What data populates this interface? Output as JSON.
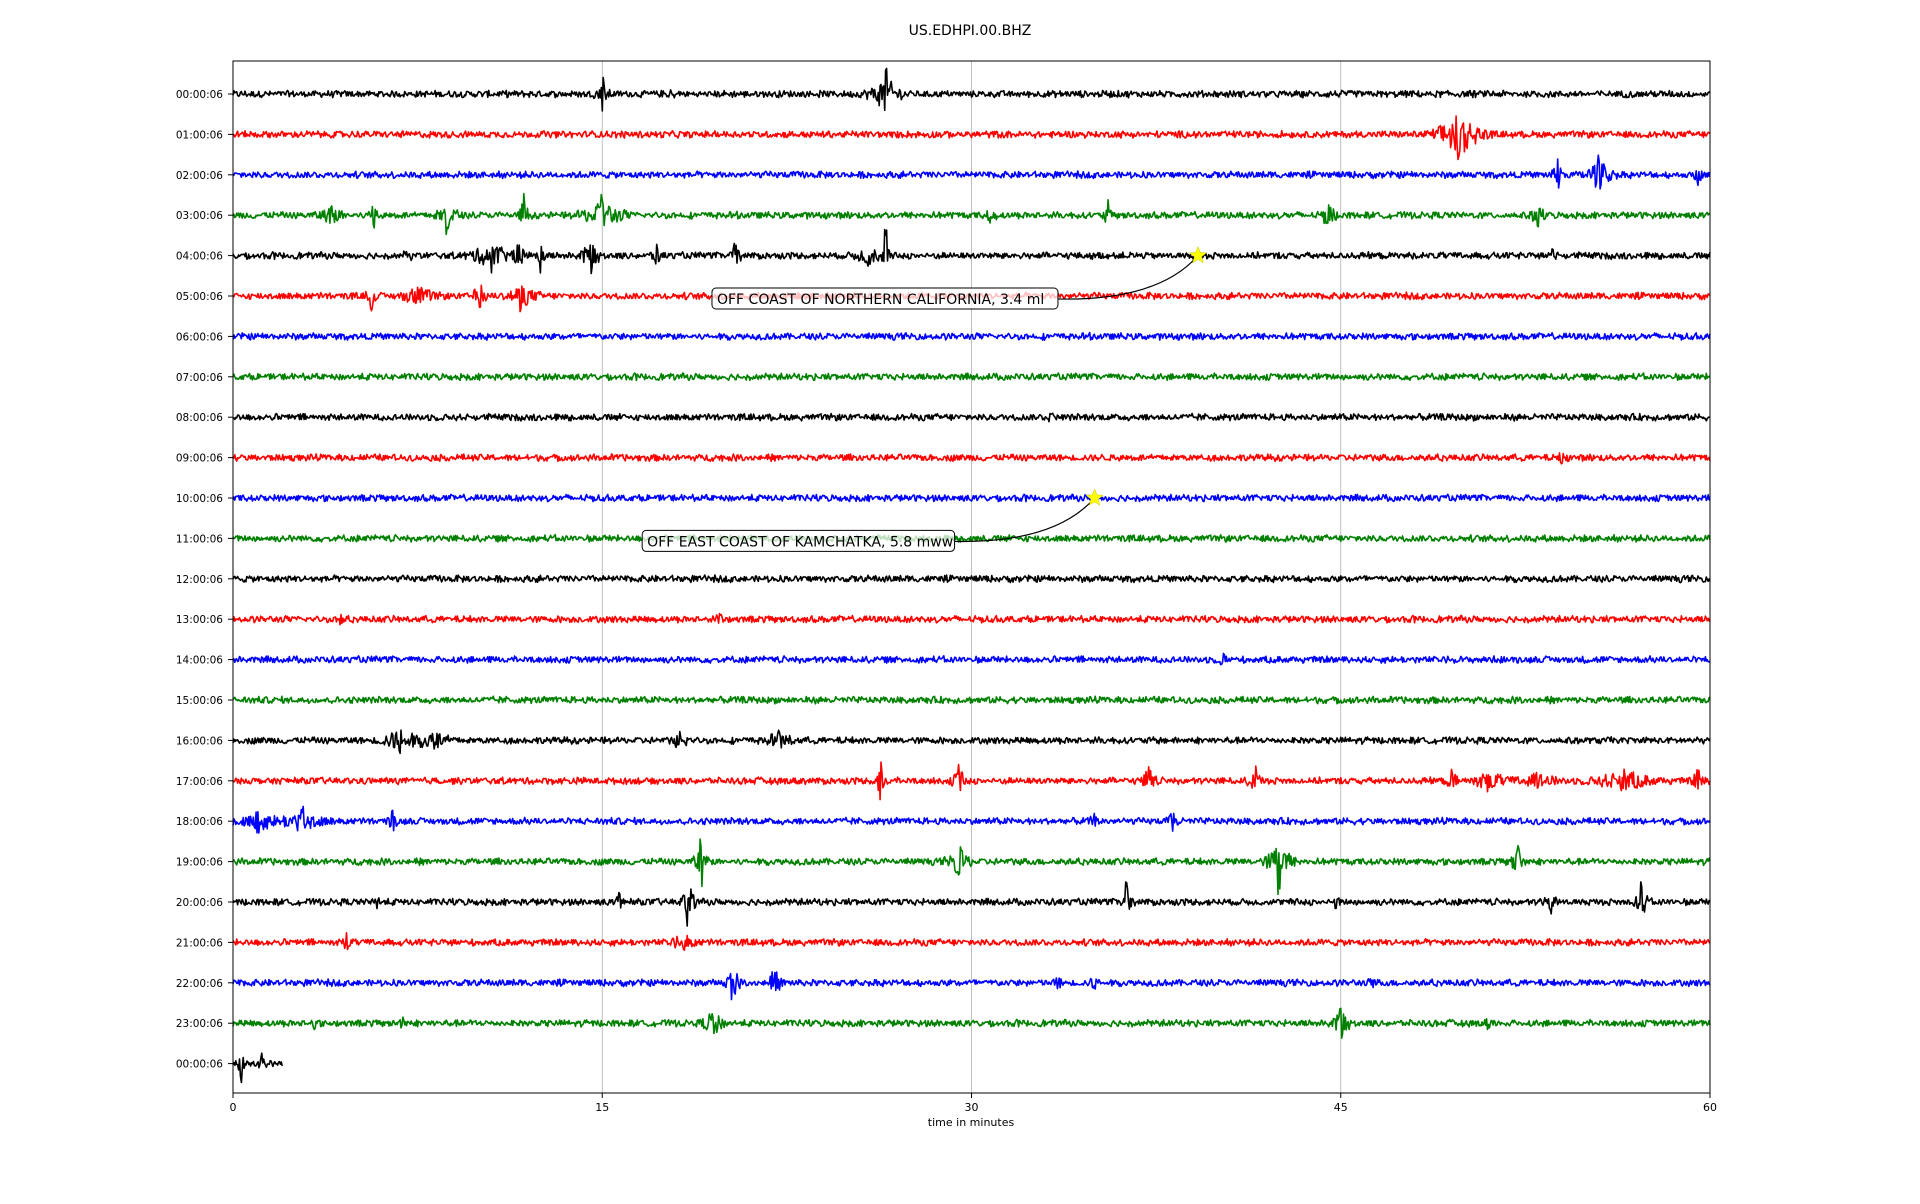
{
  "chart_data": {
    "type": "line",
    "title": "US.EDHPI.00.BHZ",
    "xlabel": "time in minutes",
    "ylabel": "",
    "xlim": [
      0,
      60
    ],
    "x_ticks": [
      "0",
      "15",
      "30",
      "45",
      "60"
    ],
    "x_tick_values": [
      0,
      15,
      30,
      45,
      60
    ],
    "grid": "vertical",
    "row_colors": [
      "#000000",
      "#ff0000",
      "#0000ff",
      "#008000"
    ],
    "rows": [
      {
        "label": "00:00:06",
        "end": 60,
        "events": [
          {
            "t": 15.0,
            "a": 0.55,
            "d": 0.5
          },
          {
            "t": 26.5,
            "a": 0.8,
            "d": 1.2
          },
          {
            "t": 17.8,
            "a": 0.15,
            "d": 0.3
          }
        ]
      },
      {
        "label": "01:00:06",
        "end": 60,
        "events": [
          {
            "t": 49.8,
            "a": 1.2,
            "d": 1.6
          }
        ]
      },
      {
        "label": "02:00:06",
        "end": 60,
        "events": [
          {
            "t": 53.8,
            "a": 0.55,
            "d": 0.4
          },
          {
            "t": 55.5,
            "a": 0.75,
            "d": 1.0
          },
          {
            "t": 59.5,
            "a": 0.35,
            "d": 0.3
          }
        ]
      },
      {
        "label": "03:00:06",
        "end": 60,
        "events": [
          {
            "t": 4.0,
            "a": 0.35,
            "d": 1.0
          },
          {
            "t": 5.7,
            "a": 0.4,
            "d": 0.4
          },
          {
            "t": 8.7,
            "a": 0.6,
            "d": 0.8
          },
          {
            "t": 11.8,
            "a": 0.7,
            "d": 0.4
          },
          {
            "t": 15.0,
            "a": 0.65,
            "d": 1.6
          },
          {
            "t": 30.8,
            "a": 0.25,
            "d": 0.5
          },
          {
            "t": 35.5,
            "a": 0.5,
            "d": 0.3
          },
          {
            "t": 44.5,
            "a": 0.65,
            "d": 0.5
          },
          {
            "t": 53.0,
            "a": 0.45,
            "d": 0.5
          }
        ]
      },
      {
        "label": "04:00:06",
        "end": 60,
        "events": [
          {
            "t": 7.1,
            "a": 0.3,
            "d": 0.3
          },
          {
            "t": 10.5,
            "a": 0.55,
            "d": 1.6
          },
          {
            "t": 11.6,
            "a": 0.5,
            "d": 0.4
          },
          {
            "t": 12.5,
            "a": 0.55,
            "d": 0.3
          },
          {
            "t": 14.5,
            "a": 0.6,
            "d": 0.8
          },
          {
            "t": 17.2,
            "a": 0.35,
            "d": 0.4
          },
          {
            "t": 20.4,
            "a": 0.6,
            "d": 0.4
          },
          {
            "t": 25.8,
            "a": 0.4,
            "d": 1.0
          },
          {
            "t": 26.5,
            "a": 0.9,
            "d": 0.25
          },
          {
            "t": 53.6,
            "a": 0.25,
            "d": 0.3
          }
        ]
      },
      {
        "label": "05:00:06",
        "end": 60,
        "events": [
          {
            "t": 5.6,
            "a": 0.8,
            "d": 0.3
          },
          {
            "t": 7.5,
            "a": 0.45,
            "d": 1.2
          },
          {
            "t": 10.0,
            "a": 0.6,
            "d": 0.5
          },
          {
            "t": 11.7,
            "a": 0.5,
            "d": 1.2
          }
        ]
      },
      {
        "label": "06:00:06",
        "end": 60,
        "events": []
      },
      {
        "label": "07:00:06",
        "end": 60,
        "events": []
      },
      {
        "label": "08:00:06",
        "end": 60,
        "events": [
          {
            "t": 33.2,
            "a": 0.15,
            "d": 0.3
          }
        ]
      },
      {
        "label": "09:00:06",
        "end": 60,
        "events": [
          {
            "t": 54.0,
            "a": 0.2,
            "d": 0.3
          }
        ]
      },
      {
        "label": "10:00:06",
        "end": 60,
        "events": []
      },
      {
        "label": "11:00:06",
        "end": 60,
        "events": []
      },
      {
        "label": "12:00:06",
        "end": 60,
        "events": []
      },
      {
        "label": "13:00:06",
        "end": 60,
        "events": [
          {
            "t": 4.4,
            "a": 0.2,
            "d": 0.3
          },
          {
            "t": 19.8,
            "a": 0.2,
            "d": 0.3
          }
        ]
      },
      {
        "label": "14:00:06",
        "end": 60,
        "events": [
          {
            "t": 40.2,
            "a": 0.25,
            "d": 0.3
          }
        ]
      },
      {
        "label": "15:00:06",
        "end": 60,
        "events": []
      },
      {
        "label": "16:00:06",
        "end": 60,
        "events": [
          {
            "t": 6.8,
            "a": 0.5,
            "d": 1.4
          },
          {
            "t": 8.2,
            "a": 0.4,
            "d": 1.2
          },
          {
            "t": 18.2,
            "a": 0.5,
            "d": 0.6
          },
          {
            "t": 22.2,
            "a": 0.4,
            "d": 1.0
          }
        ]
      },
      {
        "label": "17:00:06",
        "end": 60,
        "events": [
          {
            "t": 26.3,
            "a": 0.75,
            "d": 0.4
          },
          {
            "t": 29.5,
            "a": 0.55,
            "d": 0.5
          },
          {
            "t": 37.2,
            "a": 0.65,
            "d": 0.5
          },
          {
            "t": 41.5,
            "a": 0.5,
            "d": 0.5
          },
          {
            "t": 49.5,
            "a": 0.4,
            "d": 0.4
          },
          {
            "t": 51.0,
            "a": 0.35,
            "d": 1.5
          },
          {
            "t": 53.0,
            "a": 0.3,
            "d": 1.5
          },
          {
            "t": 56.5,
            "a": 0.45,
            "d": 2.2
          },
          {
            "t": 59.5,
            "a": 0.35,
            "d": 0.5
          }
        ]
      },
      {
        "label": "18:00:06",
        "end": 60,
        "events": [
          {
            "t": 1.0,
            "a": 0.45,
            "d": 1.4
          },
          {
            "t": 2.8,
            "a": 0.5,
            "d": 1.6
          },
          {
            "t": 6.5,
            "a": 0.35,
            "d": 0.4
          },
          {
            "t": 35.0,
            "a": 0.25,
            "d": 0.4
          },
          {
            "t": 38.2,
            "a": 0.45,
            "d": 0.4
          }
        ]
      },
      {
        "label": "19:00:06",
        "end": 60,
        "events": [
          {
            "t": 19.0,
            "a": 0.85,
            "d": 0.5
          },
          {
            "t": 29.5,
            "a": 0.6,
            "d": 0.9
          },
          {
            "t": 42.5,
            "a": 1.1,
            "d": 0.9
          },
          {
            "t": 52.2,
            "a": 0.6,
            "d": 0.6
          }
        ]
      },
      {
        "label": "20:00:06",
        "end": 60,
        "events": [
          {
            "t": 5.9,
            "a": 0.3,
            "d": 0.3
          },
          {
            "t": 15.7,
            "a": 0.35,
            "d": 0.3
          },
          {
            "t": 18.5,
            "a": 0.85,
            "d": 0.5
          },
          {
            "t": 36.3,
            "a": 0.65,
            "d": 0.4
          },
          {
            "t": 44.8,
            "a": 0.25,
            "d": 0.3
          },
          {
            "t": 53.5,
            "a": 0.45,
            "d": 0.6
          },
          {
            "t": 57.2,
            "a": 0.85,
            "d": 0.5
          }
        ]
      },
      {
        "label": "21:00:06",
        "end": 60,
        "events": [
          {
            "t": 4.6,
            "a": 0.35,
            "d": 0.3
          },
          {
            "t": 18.3,
            "a": 0.35,
            "d": 0.9
          }
        ]
      },
      {
        "label": "22:00:06",
        "end": 60,
        "events": [
          {
            "t": 20.3,
            "a": 0.75,
            "d": 0.5
          },
          {
            "t": 22.0,
            "a": 0.7,
            "d": 0.5
          },
          {
            "t": 33.5,
            "a": 0.2,
            "d": 0.4
          },
          {
            "t": 35.0,
            "a": 0.25,
            "d": 0.4
          },
          {
            "t": 46.3,
            "a": 0.15,
            "d": 0.3
          }
        ]
      },
      {
        "label": "23:00:06",
        "end": 60,
        "events": [
          {
            "t": 3.3,
            "a": 0.2,
            "d": 0.3
          },
          {
            "t": 6.9,
            "a": 0.25,
            "d": 0.3
          },
          {
            "t": 19.5,
            "a": 0.7,
            "d": 0.7
          },
          {
            "t": 45.0,
            "a": 0.5,
            "d": 0.8
          },
          {
            "t": 51.0,
            "a": 0.2,
            "d": 0.3
          }
        ]
      },
      {
        "label": "00:00:06",
        "end": 2.0,
        "events": [
          {
            "t": 0.3,
            "a": 0.6,
            "d": 0.3
          },
          {
            "t": 1.2,
            "a": 0.5,
            "d": 0.3
          }
        ]
      }
    ],
    "annotations": [
      {
        "text": "OFF COAST OF NORTHERN CALIFORNIA, 3.4 ml",
        "row": 4,
        "t": 39.2
      },
      {
        "text": "OFF EAST COAST OF KAMCHATKA, 5.8 mww",
        "row": 10,
        "t": 35.0
      }
    ],
    "marker_color": "#ffff00"
  }
}
